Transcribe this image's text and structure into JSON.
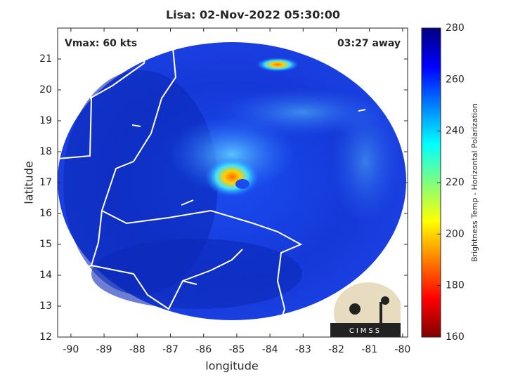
{
  "title": "Lisa: 02-Nov-2022 05:30:00",
  "annotations": {
    "vmax": "Vmax: 60 kts",
    "away": "03:27 away"
  },
  "x_axis": {
    "label": "longitude",
    "lim": [
      -90.4,
      -79.85
    ],
    "ticks": [
      -90,
      -89,
      -88,
      -87,
      -86,
      -85,
      -84,
      -83,
      -82,
      -81,
      -80
    ]
  },
  "y_axis": {
    "label": "latitude",
    "lim": [
      12,
      22
    ],
    "ticks": [
      12,
      13,
      14,
      15,
      16,
      17,
      18,
      19,
      20,
      21
    ]
  },
  "colorbar": {
    "label": "Brightness Temp - Horizontal Polarization",
    "lim": [
      160,
      280
    ],
    "ticks": [
      160,
      180,
      200,
      220,
      240,
      260,
      280
    ]
  },
  "logo": "CIMSS"
}
